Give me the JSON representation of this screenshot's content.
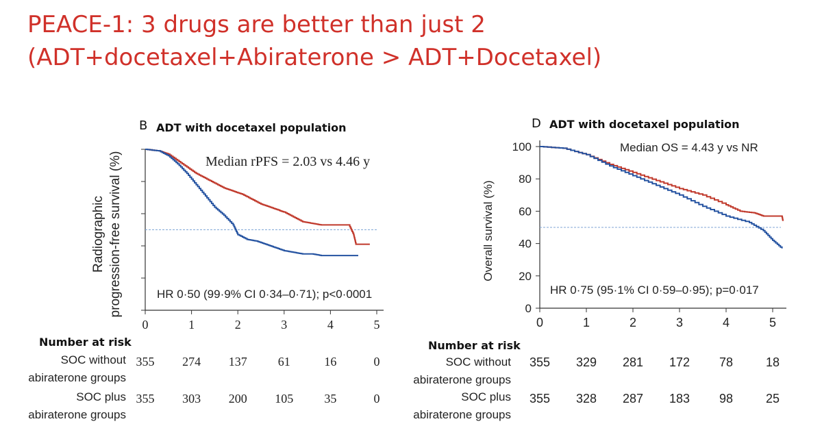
{
  "slide": {
    "title_line1": "PEACE-1: 3 drugs are better than just 2",
    "title_line2": "(ADT+docetaxel+Abiraterone > ADT+Docetaxel)"
  },
  "colors": {
    "red_curve": "#c0392b",
    "blue_curve": "#2452a0",
    "title": "#d0312a",
    "median_line": "#7fa6d6"
  },
  "chart_data": [
    {
      "panel": "B",
      "type": "line",
      "title": "ADT with docetaxel population",
      "ylabel_line1": "Radiographic",
      "ylabel_line2": "progression-free survival (%)",
      "annotation_median": "Median rPFS = 2.03 vs 4.46 y",
      "annotation_hr": "HR 0·50 (99·9% CI 0·34–0·71); p<0·0001",
      "xlim": [
        0,
        5
      ],
      "ylim": [
        0,
        100
      ],
      "x_ticks": [
        "0",
        "1",
        "2",
        "3",
        "4",
        "5"
      ],
      "median_line_y": 50,
      "series": [
        {
          "color": "red",
          "x": [
            0,
            0.3,
            0.5,
            0.7,
            0.9,
            1.1,
            1.3,
            1.5,
            1.7,
            1.9,
            2.1,
            2.3,
            2.5,
            2.7,
            2.9,
            3.0,
            3.2,
            3.4,
            3.6,
            3.8,
            4.0,
            4.2,
            4.4,
            4.5,
            4.55,
            4.7,
            4.85
          ],
          "y": [
            100,
            99,
            97,
            93,
            89,
            85,
            82,
            79,
            76,
            74,
            72,
            69,
            66,
            64,
            62,
            61,
            58,
            55,
            54,
            53,
            53,
            53,
            53,
            47,
            41,
            41,
            41
          ]
        },
        {
          "color": "blue",
          "x": [
            0,
            0.3,
            0.5,
            0.7,
            0.9,
            1.1,
            1.3,
            1.5,
            1.7,
            1.9,
            2.0,
            2.2,
            2.4,
            2.6,
            2.8,
            3.0,
            3.2,
            3.4,
            3.6,
            3.8,
            4.0,
            4.3,
            4.6
          ],
          "y": [
            100,
            99,
            96,
            91,
            85,
            78,
            71,
            64,
            59,
            53,
            47,
            44,
            43,
            41,
            39,
            37,
            36,
            35,
            35,
            34,
            34,
            34,
            34
          ]
        }
      ],
      "risk_table": {
        "header": "Number at risk",
        "rows": [
          {
            "label_line1": "SOC without",
            "label_line2": "abiraterone groups",
            "values": [
              "355",
              "274",
              "137",
              "61",
              "16",
              "0"
            ]
          },
          {
            "label_line1": "SOC plus",
            "label_line2": "abiraterone groups",
            "values": [
              "355",
              "303",
              "200",
              "105",
              "35",
              "0"
            ]
          }
        ]
      }
    },
    {
      "panel": "D",
      "type": "line",
      "title": "ADT with docetaxel population",
      "ylabel": "Overall survival (%)",
      "annotation_median": "Median OS = 4.43 y vs NR",
      "annotation_hr": "HR 0·75 (95·1% CI 0·59–0·95); p=0·017",
      "xlim": [
        0,
        5.3
      ],
      "ylim": [
        0,
        100
      ],
      "x_ticks": [
        "0",
        "1",
        "2",
        "3",
        "4",
        "5"
      ],
      "y_ticks": [
        "0",
        "20",
        "40",
        "60",
        "80",
        "100"
      ],
      "median_line_y": 50,
      "series": [
        {
          "color": "red",
          "x": [
            0,
            0.5,
            1.0,
            1.5,
            2.0,
            2.5,
            3.0,
            3.5,
            4.0,
            4.3,
            4.6,
            4.8,
            5.0,
            5.2,
            5.22
          ],
          "y": [
            100,
            99,
            95,
            89,
            84,
            79,
            74,
            70,
            64,
            60,
            59,
            57,
            57,
            57,
            54
          ]
        },
        {
          "color": "blue",
          "x": [
            0,
            0.5,
            1.0,
            1.5,
            2.0,
            2.5,
            3.0,
            3.5,
            4.0,
            4.5,
            4.8,
            5.0,
            5.2
          ],
          "y": [
            100,
            99,
            95,
            88,
            82,
            76,
            70,
            63,
            57,
            53,
            48,
            42,
            37
          ]
        }
      ],
      "risk_table": {
        "header": "Number at risk",
        "rows": [
          {
            "label_line1": "SOC without",
            "label_line2": "abiraterone groups",
            "values": [
              "355",
              "329",
              "281",
              "172",
              "78",
              "18"
            ]
          },
          {
            "label_line1": "SOC plus",
            "label_line2": "abiraterone groups",
            "values": [
              "355",
              "328",
              "287",
              "183",
              "98",
              "25"
            ]
          }
        ]
      }
    }
  ]
}
